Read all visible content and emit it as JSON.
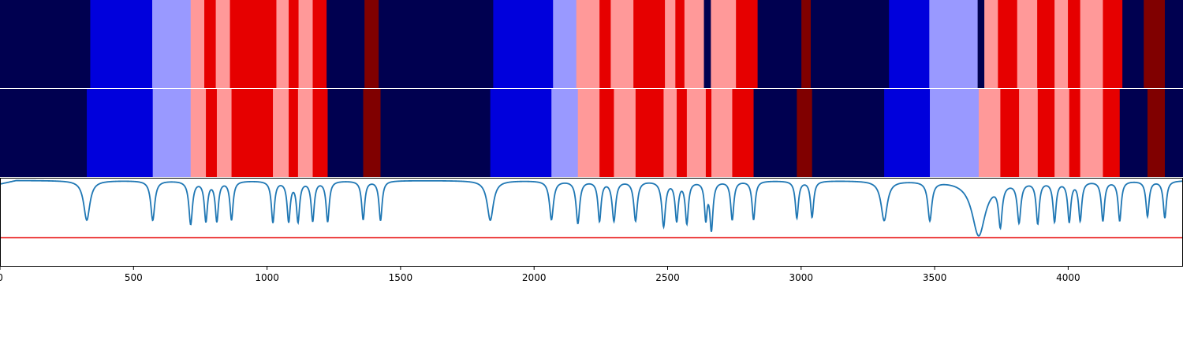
{
  "chart_data": {
    "type": "heatmap",
    "title": "",
    "xlabel": "",
    "ylabel": "",
    "xlim": [
      0,
      4430
    ],
    "x_ticks": [
      {
        "value": 0,
        "label": "0"
      },
      {
        "value": 500,
        "label": "500"
      },
      {
        "value": 1000,
        "label": "1000"
      },
      {
        "value": 1500,
        "label": "1500"
      },
      {
        "value": 2000,
        "label": "2000"
      },
      {
        "value": 2500,
        "label": "2500"
      },
      {
        "value": 3000,
        "label": "3000"
      },
      {
        "value": 3500,
        "label": "3500"
      },
      {
        "value": 4000,
        "label": "4000"
      }
    ],
    "category_colors": {
      "0": "#000050",
      "1": "#0000dc",
      "2": "#9999ff",
      "3": "#ff9999",
      "4": "#e60000",
      "5": "#800000"
    },
    "segment_rows": [
      {
        "segments": [
          [
            0,
            338,
            0
          ],
          [
            338,
            570,
            1
          ],
          [
            570,
            714,
            2
          ],
          [
            714,
            765,
            3
          ],
          [
            765,
            808,
            4
          ],
          [
            808,
            861,
            3
          ],
          [
            861,
            1035,
            4
          ],
          [
            1035,
            1081,
            3
          ],
          [
            1081,
            1118,
            4
          ],
          [
            1118,
            1171,
            3
          ],
          [
            1171,
            1223,
            4
          ],
          [
            1223,
            1365,
            0
          ],
          [
            1365,
            1418,
            5
          ],
          [
            1418,
            1847,
            0
          ],
          [
            1847,
            2071,
            1
          ],
          [
            2071,
            2158,
            2
          ],
          [
            2158,
            2245,
            3
          ],
          [
            2245,
            2287,
            4
          ],
          [
            2287,
            2372,
            3
          ],
          [
            2372,
            2490,
            4
          ],
          [
            2490,
            2529,
            3
          ],
          [
            2529,
            2563,
            4
          ],
          [
            2563,
            2636,
            3
          ],
          [
            2636,
            2662,
            0
          ],
          [
            2662,
            2756,
            3
          ],
          [
            2756,
            2837,
            4
          ],
          [
            2837,
            3001,
            0
          ],
          [
            3001,
            3036,
            5
          ],
          [
            3036,
            3329,
            0
          ],
          [
            3329,
            3480,
            1
          ],
          [
            3480,
            3661,
            2
          ],
          [
            3661,
            3686,
            0
          ],
          [
            3686,
            3737,
            3
          ],
          [
            3737,
            3809,
            4
          ],
          [
            3809,
            3884,
            3
          ],
          [
            3884,
            3949,
            4
          ],
          [
            3949,
            3999,
            3
          ],
          [
            3999,
            4045,
            4
          ],
          [
            4045,
            4130,
            3
          ],
          [
            4130,
            4203,
            4
          ],
          [
            4203,
            4283,
            0
          ],
          [
            4283,
            4362,
            5
          ],
          [
            4362,
            4430,
            0
          ]
        ]
      },
      {
        "segments": [
          [
            0,
            325,
            0
          ],
          [
            325,
            572,
            1
          ],
          [
            572,
            714,
            2
          ],
          [
            714,
            771,
            3
          ],
          [
            771,
            812,
            4
          ],
          [
            812,
            867,
            3
          ],
          [
            867,
            1022,
            4
          ],
          [
            1022,
            1081,
            3
          ],
          [
            1081,
            1116,
            4
          ],
          [
            1116,
            1171,
            3
          ],
          [
            1171,
            1227,
            4
          ],
          [
            1227,
            1360,
            0
          ],
          [
            1360,
            1425,
            5
          ],
          [
            1425,
            1836,
            0
          ],
          [
            1836,
            2065,
            1
          ],
          [
            2065,
            2164,
            2
          ],
          [
            2164,
            2245,
            3
          ],
          [
            2245,
            2299,
            4
          ],
          [
            2299,
            2380,
            3
          ],
          [
            2380,
            2485,
            4
          ],
          [
            2485,
            2534,
            3
          ],
          [
            2534,
            2572,
            4
          ],
          [
            2572,
            2643,
            3
          ],
          [
            2643,
            2664,
            4
          ],
          [
            2664,
            2742,
            3
          ],
          [
            2742,
            2822,
            4
          ],
          [
            2822,
            2984,
            0
          ],
          [
            2984,
            3041,
            5
          ],
          [
            3041,
            3311,
            0
          ],
          [
            3311,
            3482,
            1
          ],
          [
            3482,
            3665,
            2
          ],
          [
            3665,
            3746,
            3
          ],
          [
            3746,
            3816,
            4
          ],
          [
            3816,
            3886,
            3
          ],
          [
            3886,
            3949,
            4
          ],
          [
            3949,
            4004,
            3
          ],
          [
            4004,
            4045,
            4
          ],
          [
            4045,
            4130,
            3
          ],
          [
            4130,
            4193,
            4
          ],
          [
            4193,
            4297,
            0
          ],
          [
            4297,
            4362,
            5
          ],
          [
            4362,
            4430,
            0
          ]
        ]
      }
    ],
    "line_panel": {
      "line_color": "#1f77b4",
      "threshold_color": "#e60000",
      "threshold": 0.32,
      "baseline": 0.97,
      "dips": [
        [
          325,
          0.52,
          14
        ],
        [
          572,
          0.52,
          9
        ],
        [
          714,
          0.48,
          8
        ],
        [
          771,
          0.52,
          7
        ],
        [
          812,
          0.52,
          7
        ],
        [
          867,
          0.53,
          7
        ],
        [
          1022,
          0.5,
          7
        ],
        [
          1081,
          0.52,
          7
        ],
        [
          1116,
          0.52,
          7
        ],
        [
          1171,
          0.52,
          7
        ],
        [
          1227,
          0.51,
          7
        ],
        [
          1360,
          0.53,
          7
        ],
        [
          1425,
          0.52,
          7
        ],
        [
          1836,
          0.52,
          14
        ],
        [
          2065,
          0.53,
          9
        ],
        [
          2164,
          0.49,
          8
        ],
        [
          2245,
          0.52,
          7
        ],
        [
          2299,
          0.52,
          8
        ],
        [
          2380,
          0.52,
          8
        ],
        [
          2485,
          0.46,
          8
        ],
        [
          2534,
          0.53,
          7
        ],
        [
          2572,
          0.5,
          7
        ],
        [
          2643,
          0.56,
          6
        ],
        [
          2664,
          0.43,
          7
        ],
        [
          2742,
          0.53,
          7
        ],
        [
          2822,
          0.53,
          7
        ],
        [
          2984,
          0.55,
          7
        ],
        [
          3041,
          0.56,
          7
        ],
        [
          3311,
          0.52,
          14
        ],
        [
          3482,
          0.53,
          9
        ],
        [
          3665,
          0.35,
          30
        ],
        [
          3746,
          0.51,
          8
        ],
        [
          3816,
          0.52,
          8
        ],
        [
          3886,
          0.5,
          7
        ],
        [
          3949,
          0.52,
          7
        ],
        [
          4004,
          0.52,
          7
        ],
        [
          4045,
          0.53,
          7
        ],
        [
          4130,
          0.52,
          7
        ],
        [
          4193,
          0.52,
          7
        ],
        [
          4297,
          0.57,
          7
        ],
        [
          4362,
          0.55,
          7
        ]
      ]
    }
  }
}
